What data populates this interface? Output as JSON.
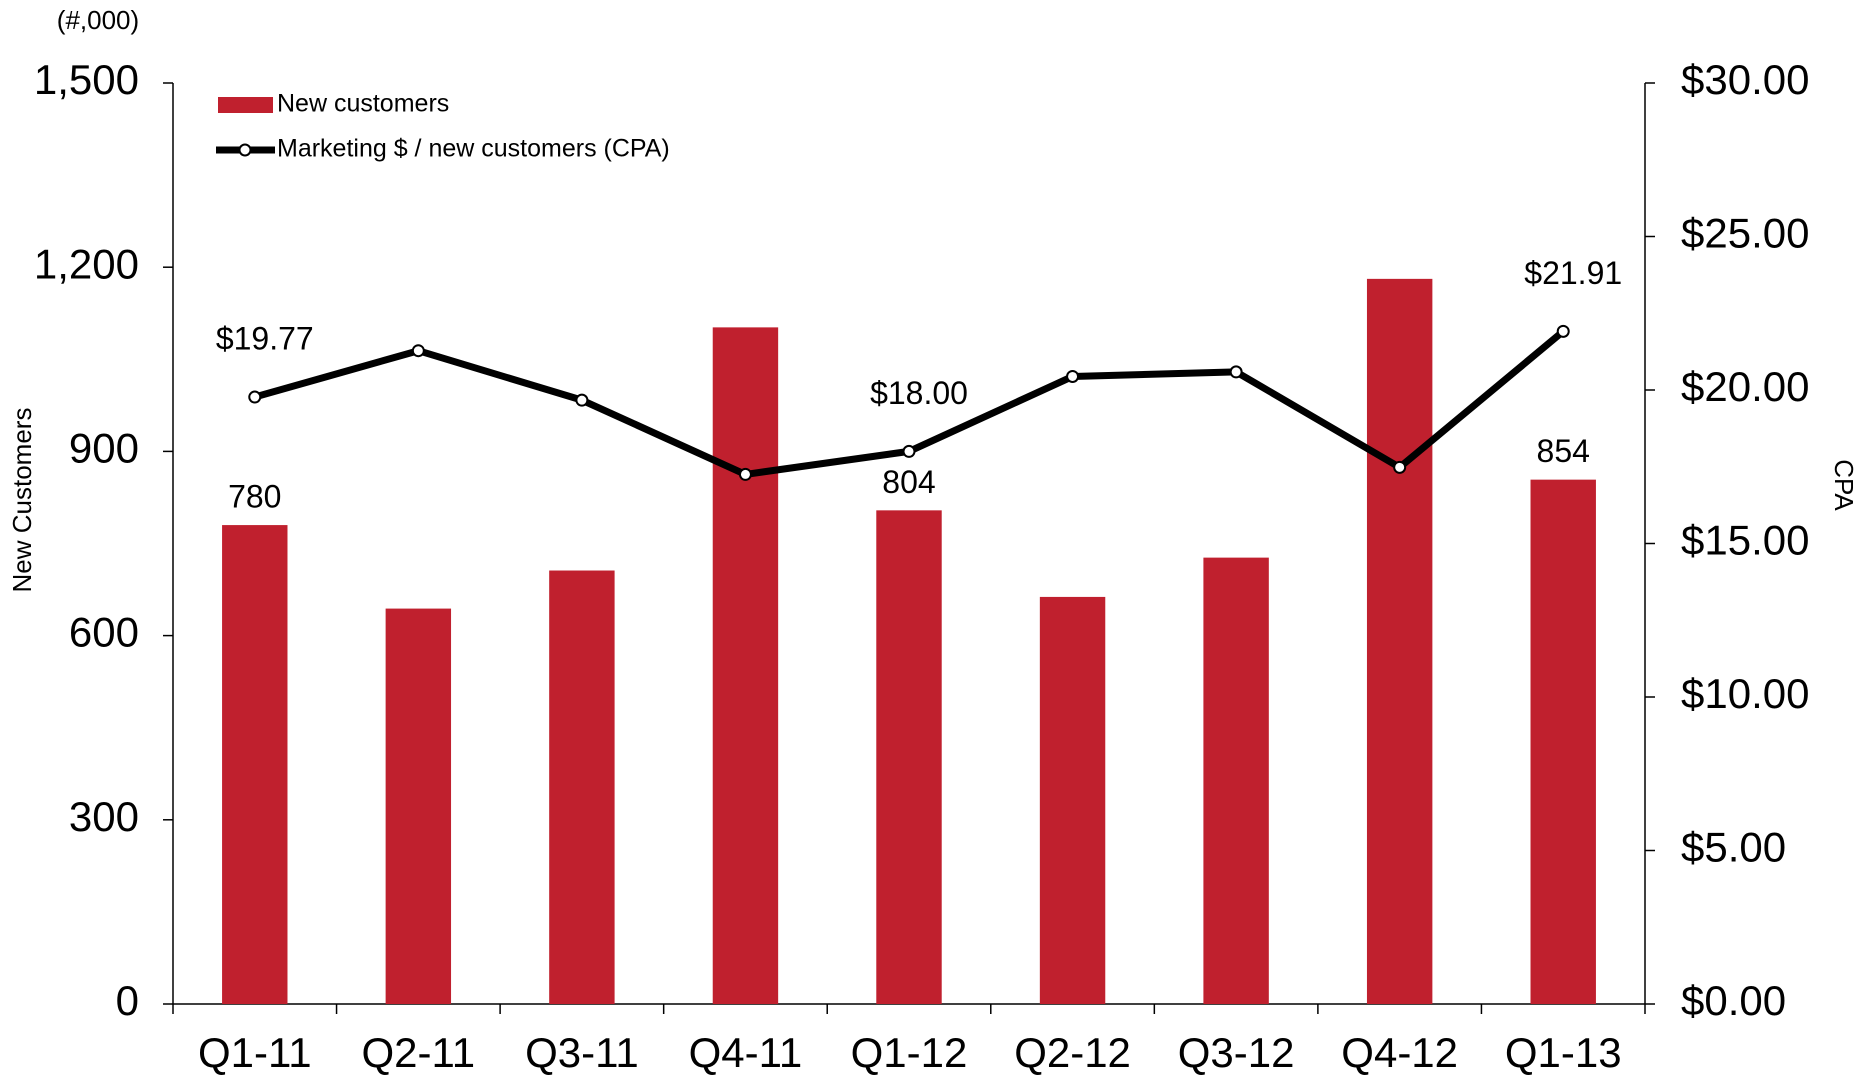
{
  "chart_data": {
    "type": "bar_line",
    "unit_label": "(#,000)",
    "y_label": "New Customers",
    "y2_label": "CPA",
    "categories": [
      "Q1-11",
      "Q2-11",
      "Q3-11",
      "Q4-11",
      "Q1-12",
      "Q2-12",
      "Q3-12",
      "Q4-12",
      "Q1-13"
    ],
    "series": [
      {
        "name": "New customers",
        "type": "bar",
        "color": "#c0202e",
        "values": [
          780,
          644,
          706,
          1102,
          804,
          663,
          727,
          1181,
          854
        ],
        "value_labels": [
          "780",
          null,
          null,
          null,
          "804",
          null,
          null,
          null,
          "854"
        ]
      },
      {
        "name": "Marketing $ / new customers (CPA)",
        "type": "line",
        "axis": "y2",
        "color": "#000000",
        "values": [
          19.77,
          21.28,
          19.67,
          17.25,
          18.0,
          20.44,
          20.59,
          17.48,
          21.91
        ],
        "value_labels": [
          "$19.77",
          null,
          null,
          null,
          "$18.00",
          null,
          null,
          null,
          "$21.91"
        ]
      }
    ],
    "ylim": [
      0,
      1500
    ],
    "yticks": [
      0,
      300,
      600,
      900,
      {
        "value": 1200,
        "label": "1,200"
      },
      {
        "value": 1500,
        "label": "1,500"
      }
    ],
    "y2lim": [
      0,
      30
    ],
    "y2ticks": [
      {
        "value": 0,
        "label": "$0.00"
      },
      {
        "value": 5,
        "label": "$5.00"
      },
      {
        "value": 10,
        "label": "$10.00"
      },
      {
        "value": 15,
        "label": "$15.00"
      },
      {
        "value": 20,
        "label": "$20.00"
      },
      {
        "value": 25,
        "label": "$25.00"
      },
      {
        "value": 30,
        "label": "$30.00"
      }
    ],
    "legend": "top-left",
    "grid": false
  }
}
